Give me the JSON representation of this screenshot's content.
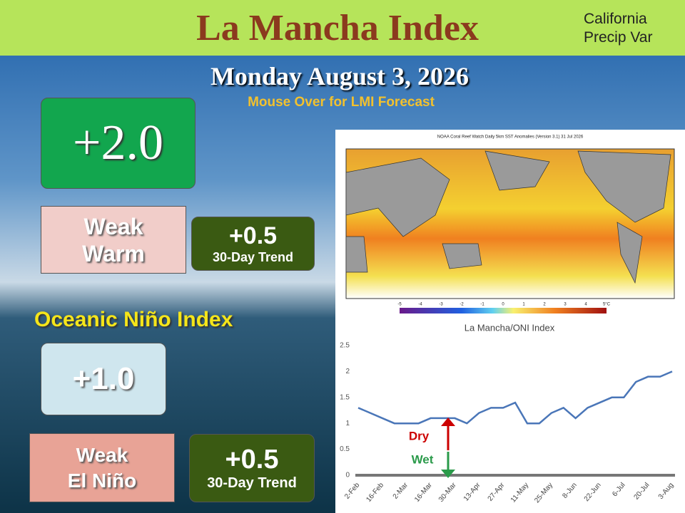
{
  "header": {
    "title": "La Mancha Index",
    "link_lines": [
      "California",
      "Precip Var"
    ]
  },
  "date": "Monday August 3, 2026",
  "subtitle": "Mouse Over for LMI Forecast",
  "lmi": {
    "value": "+2.0",
    "category_lines": [
      "Weak",
      "Warm"
    ],
    "trend": "+0.5",
    "trend_label": "30-Day Trend"
  },
  "oni": {
    "title": "Oceanic Niño Index",
    "value": "+1.0",
    "category_lines": [
      "Weak",
      "El Niño"
    ],
    "trend": "+0.5",
    "trend_label": "30-Day Trend"
  },
  "map": {
    "title": "NOAA Coral Reef Watch Daily 5km SST Anomalies (Version 3.1)  31 Jul 2026",
    "colorbar_labels": [
      "-5",
      "-4",
      "-3",
      "-2",
      "-1",
      "0",
      "1",
      "2",
      "3",
      "4",
      "5°C"
    ]
  },
  "chart_data": {
    "type": "line",
    "title": "La Mancha/ONI Index",
    "categories": [
      "2-Feb",
      null,
      "16-Feb",
      null,
      "2-Mar",
      null,
      "16-Mar",
      null,
      "30-Mar",
      null,
      "13-Apr",
      null,
      "27-Apr",
      null,
      "11-May",
      null,
      "25-May",
      null,
      "8-Jun",
      null,
      "22-Jun",
      null,
      "6-Jul",
      null,
      "20-Jul",
      null,
      "3-Aug"
    ],
    "values": [
      1.3,
      1.2,
      1.1,
      1.0,
      1.0,
      1.0,
      1.1,
      1.1,
      1.1,
      1.0,
      1.2,
      1.3,
      1.3,
      1.4,
      1.0,
      1.0,
      1.2,
      1.3,
      1.1,
      1.3,
      1.4,
      1.5,
      1.5,
      1.8,
      1.9,
      1.9,
      2.0
    ],
    "color": "#4a76b8",
    "ylim": [
      0,
      2.5
    ],
    "yticks": [
      0,
      0.5,
      1,
      1.5,
      2,
      2.5
    ],
    "grid": false,
    "annotations": [
      "Dry",
      "Wet"
    ]
  }
}
